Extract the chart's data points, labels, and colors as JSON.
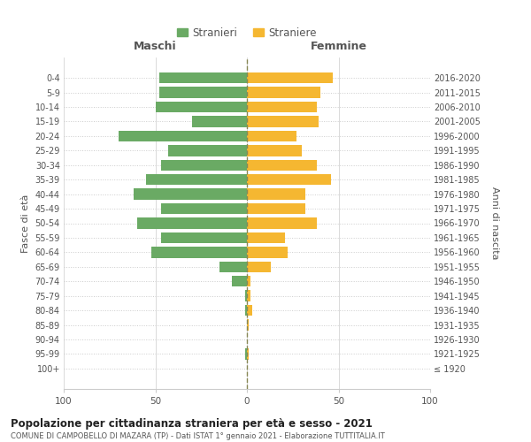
{
  "age_groups": [
    "100+",
    "95-99",
    "90-94",
    "85-89",
    "80-84",
    "75-79",
    "70-74",
    "65-69",
    "60-64",
    "55-59",
    "50-54",
    "45-49",
    "40-44",
    "35-39",
    "30-34",
    "25-29",
    "20-24",
    "15-19",
    "10-14",
    "5-9",
    "0-4"
  ],
  "birth_years": [
    "≤ 1920",
    "1921-1925",
    "1926-1930",
    "1931-1935",
    "1936-1940",
    "1941-1945",
    "1946-1950",
    "1951-1955",
    "1956-1960",
    "1961-1965",
    "1966-1970",
    "1971-1975",
    "1976-1980",
    "1981-1985",
    "1986-1990",
    "1991-1995",
    "1996-2000",
    "2001-2005",
    "2006-2010",
    "2011-2015",
    "2016-2020"
  ],
  "maschi": [
    0,
    1,
    0,
    0,
    1,
    1,
    8,
    15,
    52,
    47,
    60,
    47,
    62,
    55,
    47,
    43,
    70,
    30,
    50,
    48,
    48
  ],
  "femmine": [
    0,
    1,
    0,
    1,
    3,
    2,
    2,
    13,
    22,
    21,
    38,
    32,
    32,
    46,
    38,
    30,
    27,
    39,
    38,
    40,
    47
  ],
  "male_color": "#6aaa64",
  "female_color": "#f5b731",
  "dashed_line_color": "#888855",
  "grid_color": "#cccccc",
  "title": "Popolazione per cittadinanza straniera per età e sesso - 2021",
  "subtitle": "COMUNE DI CAMPOBELLO DI MAZARA (TP) - Dati ISTAT 1° gennaio 2021 - Elaborazione TUTTITALIA.IT",
  "ylabel_left": "Fasce di età",
  "ylabel_right": "Anni di nascita",
  "legend_male": "Stranieri",
  "legend_female": "Straniere",
  "xlim": 100,
  "header_maschi": "Maschi",
  "header_femmine": "Femmine",
  "background_color": "#ffffff",
  "text_color": "#555555"
}
